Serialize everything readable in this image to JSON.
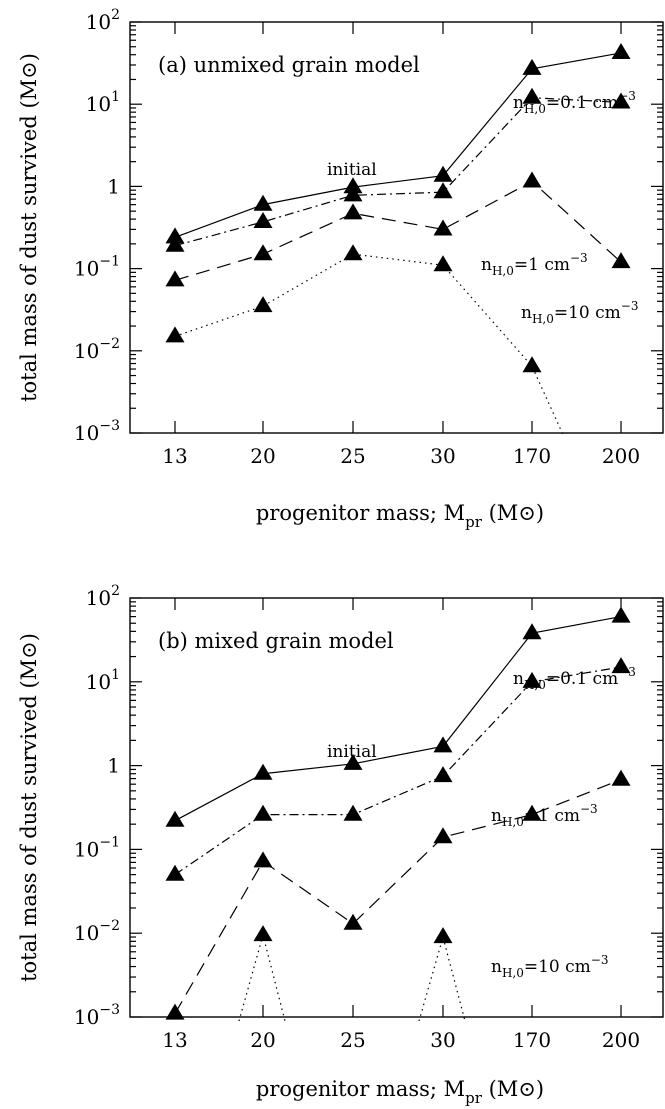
{
  "chart_data": [
    {
      "type": "line",
      "panel": "a",
      "title": "(a) unmixed grain model",
      "xlabel": "progenitor mass; M",
      "xlabel_sub": "pr",
      "xlabel_unit": "(M⊙)",
      "ylabel": "total mass of dust survived (M⊙)",
      "y_scale": "log",
      "ylim": [
        0.001,
        100
      ],
      "categories": [
        "13",
        "20",
        "25",
        "30",
        "170",
        "200"
      ],
      "y_ticks": [
        {
          "value": 100,
          "base": "10",
          "exp": "2"
        },
        {
          "value": 10,
          "base": "10",
          "exp": "1"
        },
        {
          "value": 1,
          "base": "1",
          "exp": ""
        },
        {
          "value": 0.1,
          "base": "10",
          "exp": "−1"
        },
        {
          "value": 0.01,
          "base": "10",
          "exp": "−2"
        },
        {
          "value": 0.001,
          "base": "10",
          "exp": "−3"
        }
      ],
      "series": [
        {
          "label": "initial",
          "style": "solid",
          "values": [
            0.24,
            0.6,
            0.98,
            1.35,
            27,
            42
          ]
        },
        {
          "label": "n_H,0=0.1 cm^-3",
          "style": "dashdot",
          "values": [
            0.19,
            0.37,
            0.78,
            0.85,
            12,
            10.5
          ]
        },
        {
          "label": "n_H,0=1 cm^-3",
          "style": "dashed",
          "values": [
            0.072,
            0.15,
            0.47,
            0.3,
            1.15,
            0.12
          ]
        },
        {
          "label": "n_H,0=10 cm^-3",
          "style": "dotted",
          "values": [
            0.015,
            0.035,
            0.15,
            0.11,
            0.0065,
            null
          ],
          "tail_to": {
            "x_index": 4.35,
            "value": 0.0009
          }
        }
      ],
      "annotations": [
        {
          "series": 0,
          "text": "initial",
          "sub": "",
          "tail": ""
        },
        {
          "series": 1,
          "text": "n",
          "sub": "H,0",
          "tail": "=0.1 cm",
          "sup": "−3"
        },
        {
          "series": 2,
          "text": "n",
          "sub": "H,0",
          "tail": "=1 cm",
          "sup": "−3"
        },
        {
          "series": 3,
          "text": "n",
          "sub": "H,0",
          "tail": "=10 cm",
          "sup": "−3"
        }
      ]
    },
    {
      "type": "line",
      "panel": "b",
      "title": "(b) mixed grain model",
      "xlabel": "progenitor mass; M",
      "xlabel_sub": "pr",
      "xlabel_unit": "(M⊙)",
      "ylabel": "total mass of dust survived (M⊙)",
      "y_scale": "log",
      "ylim": [
        0.001,
        100
      ],
      "categories": [
        "13",
        "20",
        "25",
        "30",
        "170",
        "200"
      ],
      "y_ticks": [
        {
          "value": 100,
          "base": "10",
          "exp": "2"
        },
        {
          "value": 10,
          "base": "10",
          "exp": "1"
        },
        {
          "value": 1,
          "base": "1",
          "exp": ""
        },
        {
          "value": 0.1,
          "base": "10",
          "exp": "−1"
        },
        {
          "value": 0.01,
          "base": "10",
          "exp": "−2"
        },
        {
          "value": 0.001,
          "base": "10",
          "exp": "−3"
        }
      ],
      "series": [
        {
          "label": "initial",
          "style": "solid",
          "values": [
            0.22,
            0.8,
            1.05,
            1.7,
            38,
            60
          ]
        },
        {
          "label": "n_H,0=0.1 cm^-3",
          "style": "dashdot",
          "values": [
            0.05,
            0.26,
            0.26,
            0.75,
            10,
            15
          ]
        },
        {
          "label": "n_H,0=1 cm^-3",
          "style": "dashed",
          "values": [
            0.0011,
            0.072,
            0.013,
            0.14,
            0.26,
            0.68
          ]
        },
        {
          "label": "n_H,0=10 cm^-3",
          "style": "dotted",
          "values": [
            null,
            0.0095,
            null,
            0.009,
            null,
            null
          ],
          "peaks": true
        }
      ],
      "annotations": [
        {
          "series": 0,
          "text": "initial",
          "sub": "",
          "tail": ""
        },
        {
          "series": 1,
          "text": "n",
          "sub": "H,0",
          "tail": "=0.1 cm",
          "sup": "−3"
        },
        {
          "series": 2,
          "text": "n",
          "sub": "H,0",
          "tail": "=1 cm",
          "sup": "−3"
        },
        {
          "series": 3,
          "text": "n",
          "sub": "H,0",
          "tail": "=10 cm",
          "sup": "−3"
        }
      ]
    }
  ]
}
